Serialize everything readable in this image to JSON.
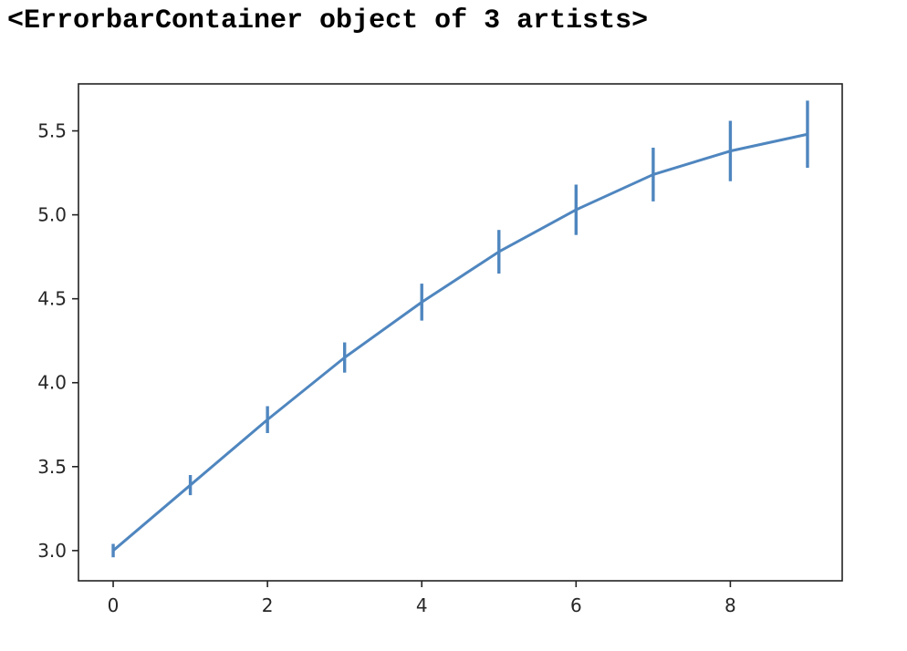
{
  "output": {
    "text": "<ErrorbarContainer object of 3 artists>"
  },
  "chart_data": {
    "type": "line",
    "title": "",
    "xlabel": "",
    "ylabel": "",
    "x": [
      0,
      1,
      2,
      3,
      4,
      5,
      6,
      7,
      8,
      9
    ],
    "series": [
      {
        "values": [
          3.0,
          3.39,
          3.78,
          4.15,
          4.48,
          4.78,
          5.03,
          5.24,
          5.38,
          5.48
        ],
        "errors": [
          0.04,
          0.06,
          0.08,
          0.09,
          0.11,
          0.13,
          0.15,
          0.16,
          0.18,
          0.2
        ],
        "color": "#4f86bf"
      }
    ],
    "xlim": [
      -0.45,
      9.45
    ],
    "ylim": [
      2.82,
      5.78
    ],
    "xticks": [
      0,
      2,
      4,
      6,
      8
    ],
    "xtick_labels": [
      "0",
      "2",
      "4",
      "6",
      "8"
    ],
    "yticks": [
      3.0,
      3.5,
      4.0,
      4.5,
      5.0,
      5.5
    ],
    "ytick_labels": [
      "3.0",
      "3.5",
      "4.0",
      "4.5",
      "5.0",
      "5.5"
    ],
    "grid": false,
    "legend": "none"
  }
}
